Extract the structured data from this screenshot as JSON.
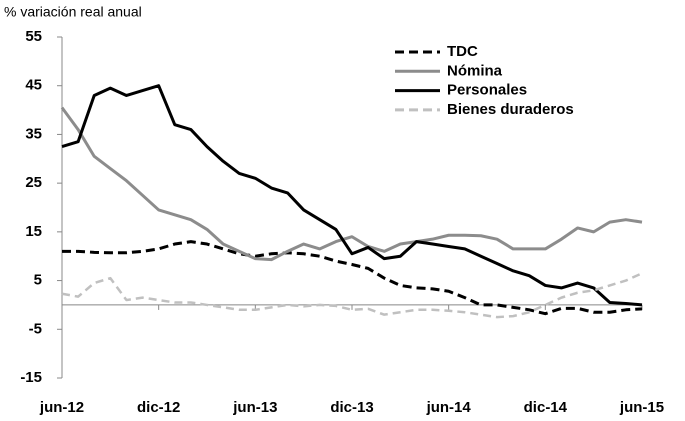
{
  "chart_data": {
    "type": "line",
    "y_label": "% variación real anual",
    "categories": [
      "jun-12",
      null,
      null,
      null,
      null,
      null,
      "dic-12",
      null,
      null,
      null,
      null,
      null,
      "jun-13",
      null,
      null,
      null,
      null,
      null,
      "dic-13",
      null,
      null,
      null,
      null,
      null,
      "jun-14",
      null,
      null,
      null,
      null,
      null,
      "dic-14",
      null,
      null,
      null,
      null,
      null,
      "jun-15"
    ],
    "series": [
      {
        "name": "TDC",
        "color": "#000000",
        "line_style": "dashed",
        "values": [
          11,
          11,
          10.8,
          10.7,
          10.7,
          11,
          11.5,
          12.5,
          13,
          12.5,
          11.5,
          10.5,
          10,
          10.5,
          10.7,
          10.5,
          10,
          9,
          8.3,
          7.5,
          5.5,
          4,
          3.5,
          3.3,
          2.8,
          1.5,
          0,
          0,
          -0.5,
          -1,
          -1.8,
          -0.7,
          -0.7,
          -1.5,
          -1.5,
          -1,
          -0.8
        ]
      },
      {
        "name": "Nómina",
        "color": "#8c8c8c",
        "line_style": "solid",
        "values": [
          40.5,
          36,
          30.5,
          28,
          25.5,
          22.5,
          19.5,
          18.5,
          17.5,
          15.5,
          12.5,
          11,
          9.5,
          9.3,
          11,
          12.5,
          11.5,
          13,
          14,
          12,
          11,
          12.5,
          13,
          13.5,
          14.3,
          14.3,
          14.2,
          13.5,
          11.5,
          11.5,
          11.5,
          13.5,
          15.8,
          15,
          17,
          17.5,
          17
        ]
      },
      {
        "name": "Personales",
        "color": "#000000",
        "line_style": "solid",
        "values": [
          32.5,
          33.5,
          43,
          44.5,
          43,
          44,
          45,
          37,
          36,
          32.5,
          29.5,
          27,
          26,
          24,
          23,
          19.5,
          17.5,
          15.5,
          10.5,
          11.8,
          9.5,
          10,
          13,
          12.5,
          12,
          11.5,
          10,
          8.5,
          7,
          6,
          4,
          3.5,
          4.5,
          3.5,
          0.5,
          0.3,
          0
        ]
      },
      {
        "name": "Bienes duraderos",
        "color": "#c0c0c0",
        "line_style": "dashed",
        "values": [
          2.3,
          1.7,
          4.5,
          5.5,
          1,
          1.5,
          1,
          0.5,
          0.5,
          0,
          -0.5,
          -1,
          -1,
          -0.5,
          0,
          -0.3,
          0,
          -0.2,
          -1,
          -0.8,
          -2,
          -1.5,
          -1,
          -1,
          -1.2,
          -1.5,
          -2,
          -2.5,
          -2.3,
          -1.5,
          0,
          1.5,
          2.5,
          3,
          4,
          5,
          6.5
        ]
      }
    ],
    "ylim": [
      -15,
      55
    ],
    "yticks": [
      -15,
      -5,
      5,
      15,
      25,
      35,
      45,
      55
    ],
    "legend": "top-right"
  }
}
